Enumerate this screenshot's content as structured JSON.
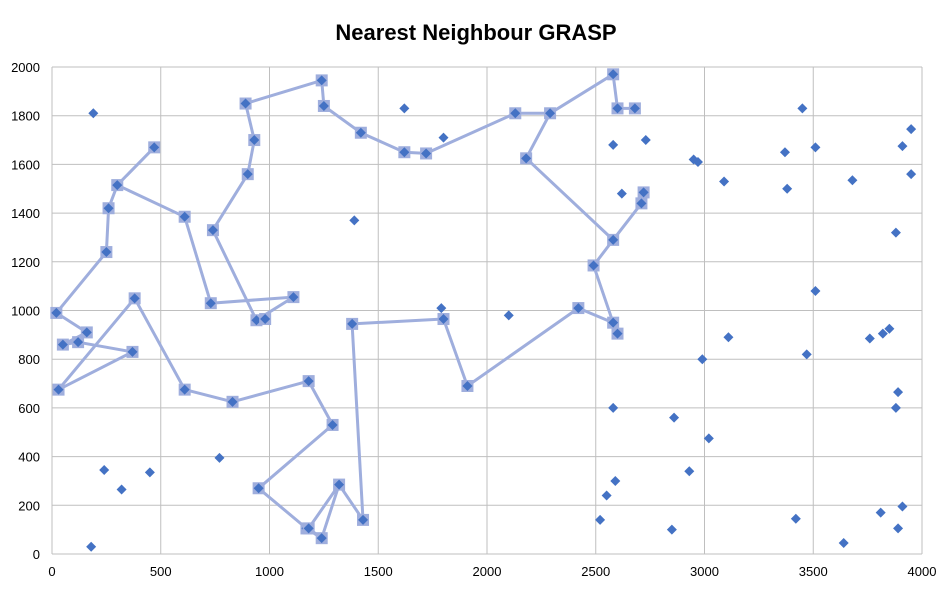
{
  "chart_data": {
    "type": "scatter",
    "title": "Nearest Neighbour GRASP",
    "xlim": [
      0,
      4000
    ],
    "ylim": [
      0,
      2000
    ],
    "x_ticks": [
      0,
      500,
      1000,
      1500,
      2000,
      2500,
      3000,
      3500,
      4000
    ],
    "y_ticks": [
      0,
      200,
      400,
      600,
      800,
      1000,
      1200,
      1400,
      1600,
      1800,
      2000
    ],
    "grid": true,
    "colors": {
      "points": "#4472C4",
      "route": "#9FAEDD",
      "grid": "#BFBFBF"
    },
    "series": [
      {
        "type": "scatter",
        "points": [
          [
            190,
            1810
          ],
          [
            1620,
            1830
          ],
          [
            1390,
            1370
          ],
          [
            1800,
            1710
          ],
          [
            1790,
            1010
          ],
          [
            2100,
            980
          ],
          [
            240,
            345
          ],
          [
            320,
            265
          ],
          [
            450,
            335
          ],
          [
            770,
            395
          ],
          [
            180,
            30
          ],
          [
            2580,
            1680
          ],
          [
            2620,
            1480
          ],
          [
            2730,
            1700
          ],
          [
            2950,
            1620
          ],
          [
            2970,
            1610
          ],
          [
            3090,
            1530
          ],
          [
            3370,
            1650
          ],
          [
            3380,
            1500
          ],
          [
            3450,
            1830
          ],
          [
            3510,
            1670
          ],
          [
            3680,
            1535
          ],
          [
            3950,
            1745
          ],
          [
            3910,
            1675
          ],
          [
            3950,
            1560
          ],
          [
            3880,
            1320
          ],
          [
            3510,
            1080
          ],
          [
            3110,
            890
          ],
          [
            2990,
            800
          ],
          [
            3470,
            820
          ],
          [
            3760,
            885
          ],
          [
            3820,
            905
          ],
          [
            3850,
            925
          ],
          [
            3890,
            665
          ],
          [
            3880,
            600
          ],
          [
            2580,
            600
          ],
          [
            2860,
            560
          ],
          [
            3020,
            475
          ],
          [
            2930,
            340
          ],
          [
            2590,
            300
          ],
          [
            2550,
            240
          ],
          [
            2520,
            140
          ],
          [
            2850,
            100
          ],
          [
            3420,
            145
          ],
          [
            3640,
            45
          ],
          [
            3810,
            170
          ],
          [
            3910,
            195
          ],
          [
            3890,
            105
          ]
        ]
      },
      {
        "type": "line",
        "routes": [
          [
            [
              20,
              990
            ],
            [
              250,
              1240
            ],
            [
              260,
              1420
            ],
            [
              300,
              1515
            ],
            [
              470,
              1670
            ],
            [
              300,
              1515
            ],
            [
              610,
              1385
            ],
            [
              730,
              1030
            ],
            [
              1110,
              1055
            ],
            [
              940,
              960
            ],
            [
              740,
              1330
            ],
            [
              900,
              1560
            ],
            [
              930,
              1700
            ],
            [
              890,
              1850
            ],
            [
              1240,
              1945
            ],
            [
              1250,
              1840
            ],
            [
              1420,
              1730
            ],
            [
              1620,
              1650
            ],
            [
              1720,
              1645
            ],
            [
              2130,
              1810
            ],
            [
              2290,
              1810
            ],
            [
              2580,
              1970
            ],
            [
              2600,
              1830
            ],
            [
              2680,
              1830
            ],
            [
              2600,
              1830
            ],
            [
              2580,
              1970
            ],
            [
              2290,
              1810
            ],
            [
              2180,
              1625
            ],
            [
              2580,
              1290
            ],
            [
              2710,
              1440
            ],
            [
              2720,
              1485
            ]
          ],
          [
            [
              20,
              990
            ],
            [
              160,
              910
            ],
            [
              50,
              860
            ],
            [
              120,
              870
            ],
            [
              370,
              830
            ],
            [
              30,
              675
            ],
            [
              380,
              1050
            ],
            [
              610,
              675
            ],
            [
              830,
              625
            ],
            [
              1180,
              710
            ],
            [
              1290,
              530
            ],
            [
              950,
              270
            ],
            [
              1170,
              105
            ],
            [
              1240,
              65
            ],
            [
              1320,
              285
            ],
            [
              1180,
              105
            ],
            [
              1240,
              65
            ],
            [
              1320,
              285
            ],
            [
              1430,
              140
            ],
            [
              1380,
              945
            ],
            [
              1800,
              965
            ],
            [
              1910,
              690
            ],
            [
              2420,
              1010
            ],
            [
              2580,
              950
            ],
            [
              2600,
              905
            ],
            [
              2580,
              950
            ],
            [
              2490,
              1185
            ],
            [
              2580,
              1290
            ],
            [
              2490,
              1185
            ],
            [
              2580,
              950
            ]
          ],
          [
            [
              980,
              965
            ],
            [
              940,
              960
            ]
          ]
        ]
      }
    ]
  }
}
